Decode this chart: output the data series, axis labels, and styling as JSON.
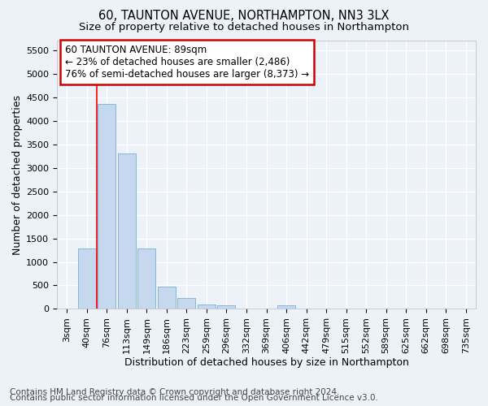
{
  "title_line1": "60, TAUNTON AVENUE, NORTHAMPTON, NN3 3LX",
  "title_line2": "Size of property relative to detached houses in Northampton",
  "xlabel": "Distribution of detached houses by size in Northampton",
  "ylabel": "Number of detached properties",
  "footnote1": "Contains HM Land Registry data © Crown copyright and database right 2024.",
  "footnote2": "Contains public sector information licensed under the Open Government Licence v3.0.",
  "annotation_line1": "60 TAUNTON AVENUE: 89sqm",
  "annotation_line2": "← 23% of detached houses are smaller (2,486)",
  "annotation_line3": "76% of semi-detached houses are larger (8,373) →",
  "bar_labels": [
    "3sqm",
    "40sqm",
    "76sqm",
    "113sqm",
    "149sqm",
    "186sqm",
    "223sqm",
    "259sqm",
    "296sqm",
    "332sqm",
    "369sqm",
    "406sqm",
    "442sqm",
    "479sqm",
    "515sqm",
    "552sqm",
    "589sqm",
    "625sqm",
    "662sqm",
    "698sqm",
    "735sqm"
  ],
  "bar_values": [
    0,
    1280,
    4350,
    3300,
    1280,
    480,
    240,
    100,
    80,
    0,
    0,
    70,
    0,
    0,
    0,
    0,
    0,
    0,
    0,
    0,
    0
  ],
  "bar_color": "#c5d8ee",
  "bar_edge_color": "#7aafd4",
  "red_line_x": 1.5,
  "ylim": [
    0,
    5700
  ],
  "yticks": [
    0,
    500,
    1000,
    1500,
    2000,
    2500,
    3000,
    3500,
    4000,
    4500,
    5000,
    5500
  ],
  "bg_color": "#edf2f9",
  "plot_bg_color": "#edf2f9",
  "grid_color": "#ffffff",
  "annotation_box_color": "#ffffff",
  "annotation_box_edge_color": "#cc0000",
  "title_fontsize": 10.5,
  "subtitle_fontsize": 9.5,
  "xlabel_fontsize": 9,
  "ylabel_fontsize": 9,
  "tick_fontsize": 8,
  "annotation_fontsize": 8.5,
  "footnote_fontsize": 7.5
}
